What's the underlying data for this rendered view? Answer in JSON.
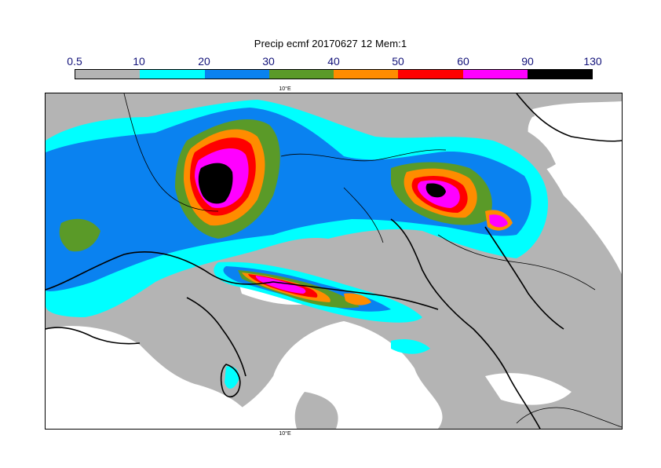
{
  "title": "Precip ecmf 20170627 12 Mem:1",
  "legend": {
    "labels": [
      "0.5",
      "10",
      "20",
      "30",
      "40",
      "50",
      "60",
      "90",
      "130"
    ],
    "colors": [
      "#b4b4b4",
      "#00ffff",
      "#0a82f0",
      "#5a9a28",
      "#ff8c00",
      "#ff0000",
      "#ff00ff",
      "#000000"
    ]
  },
  "map": {
    "lon_label_top": "10°E",
    "lon_label_bottom": "10°E",
    "land_color": "#ffffff",
    "coastline_color": "#000000"
  }
}
